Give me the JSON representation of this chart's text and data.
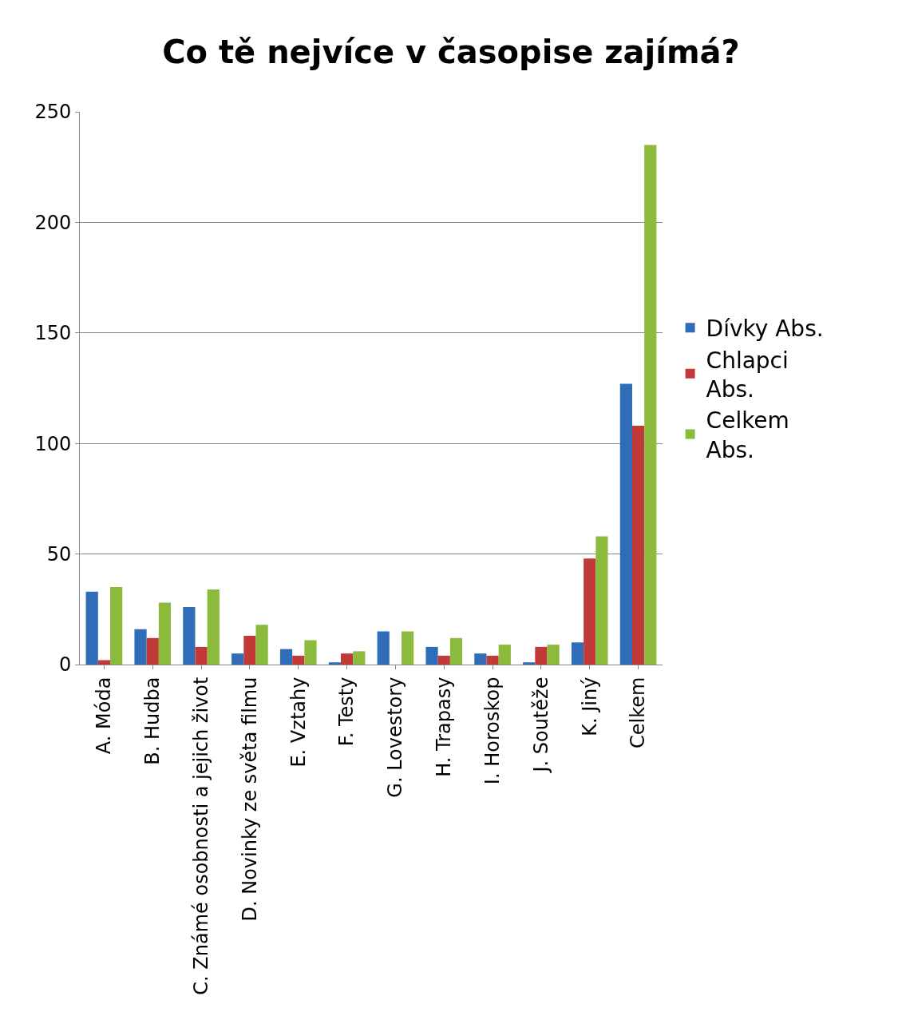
{
  "chart_data": {
    "type": "bar",
    "title": "Co tě nejvíce v časopise zajímá?",
    "categories": [
      "A. Móda",
      "B. Hudba",
      "C. Známé osobnosti a jejich život",
      "D. Novinky ze světa filmu",
      "E. Vztahy",
      "F. Testy",
      "G. Lovestory",
      "H. Trapasy",
      "I. Horoskop",
      "J. Soutěže",
      "K. Jiný",
      "Celkem"
    ],
    "series": [
      {
        "name": "Dívky Abs.",
        "color": "#2f6db8",
        "values": [
          33,
          16,
          26,
          5,
          7,
          1,
          15,
          8,
          5,
          1,
          10,
          127
        ]
      },
      {
        "name": "Chlapci Abs.",
        "color": "#c23a38",
        "values": [
          2,
          12,
          8,
          13,
          4,
          5,
          0,
          4,
          4,
          8,
          48,
          108
        ]
      },
      {
        "name": "Celkem Abs.",
        "color": "#8cba3c",
        "values": [
          35,
          28,
          34,
          18,
          11,
          6,
          15,
          12,
          9,
          9,
          58,
          235
        ]
      }
    ],
    "ylim": [
      0,
      250
    ],
    "yticks": [
      0,
      50,
      100,
      150,
      200,
      250
    ],
    "grid": "y",
    "legend": "right"
  }
}
